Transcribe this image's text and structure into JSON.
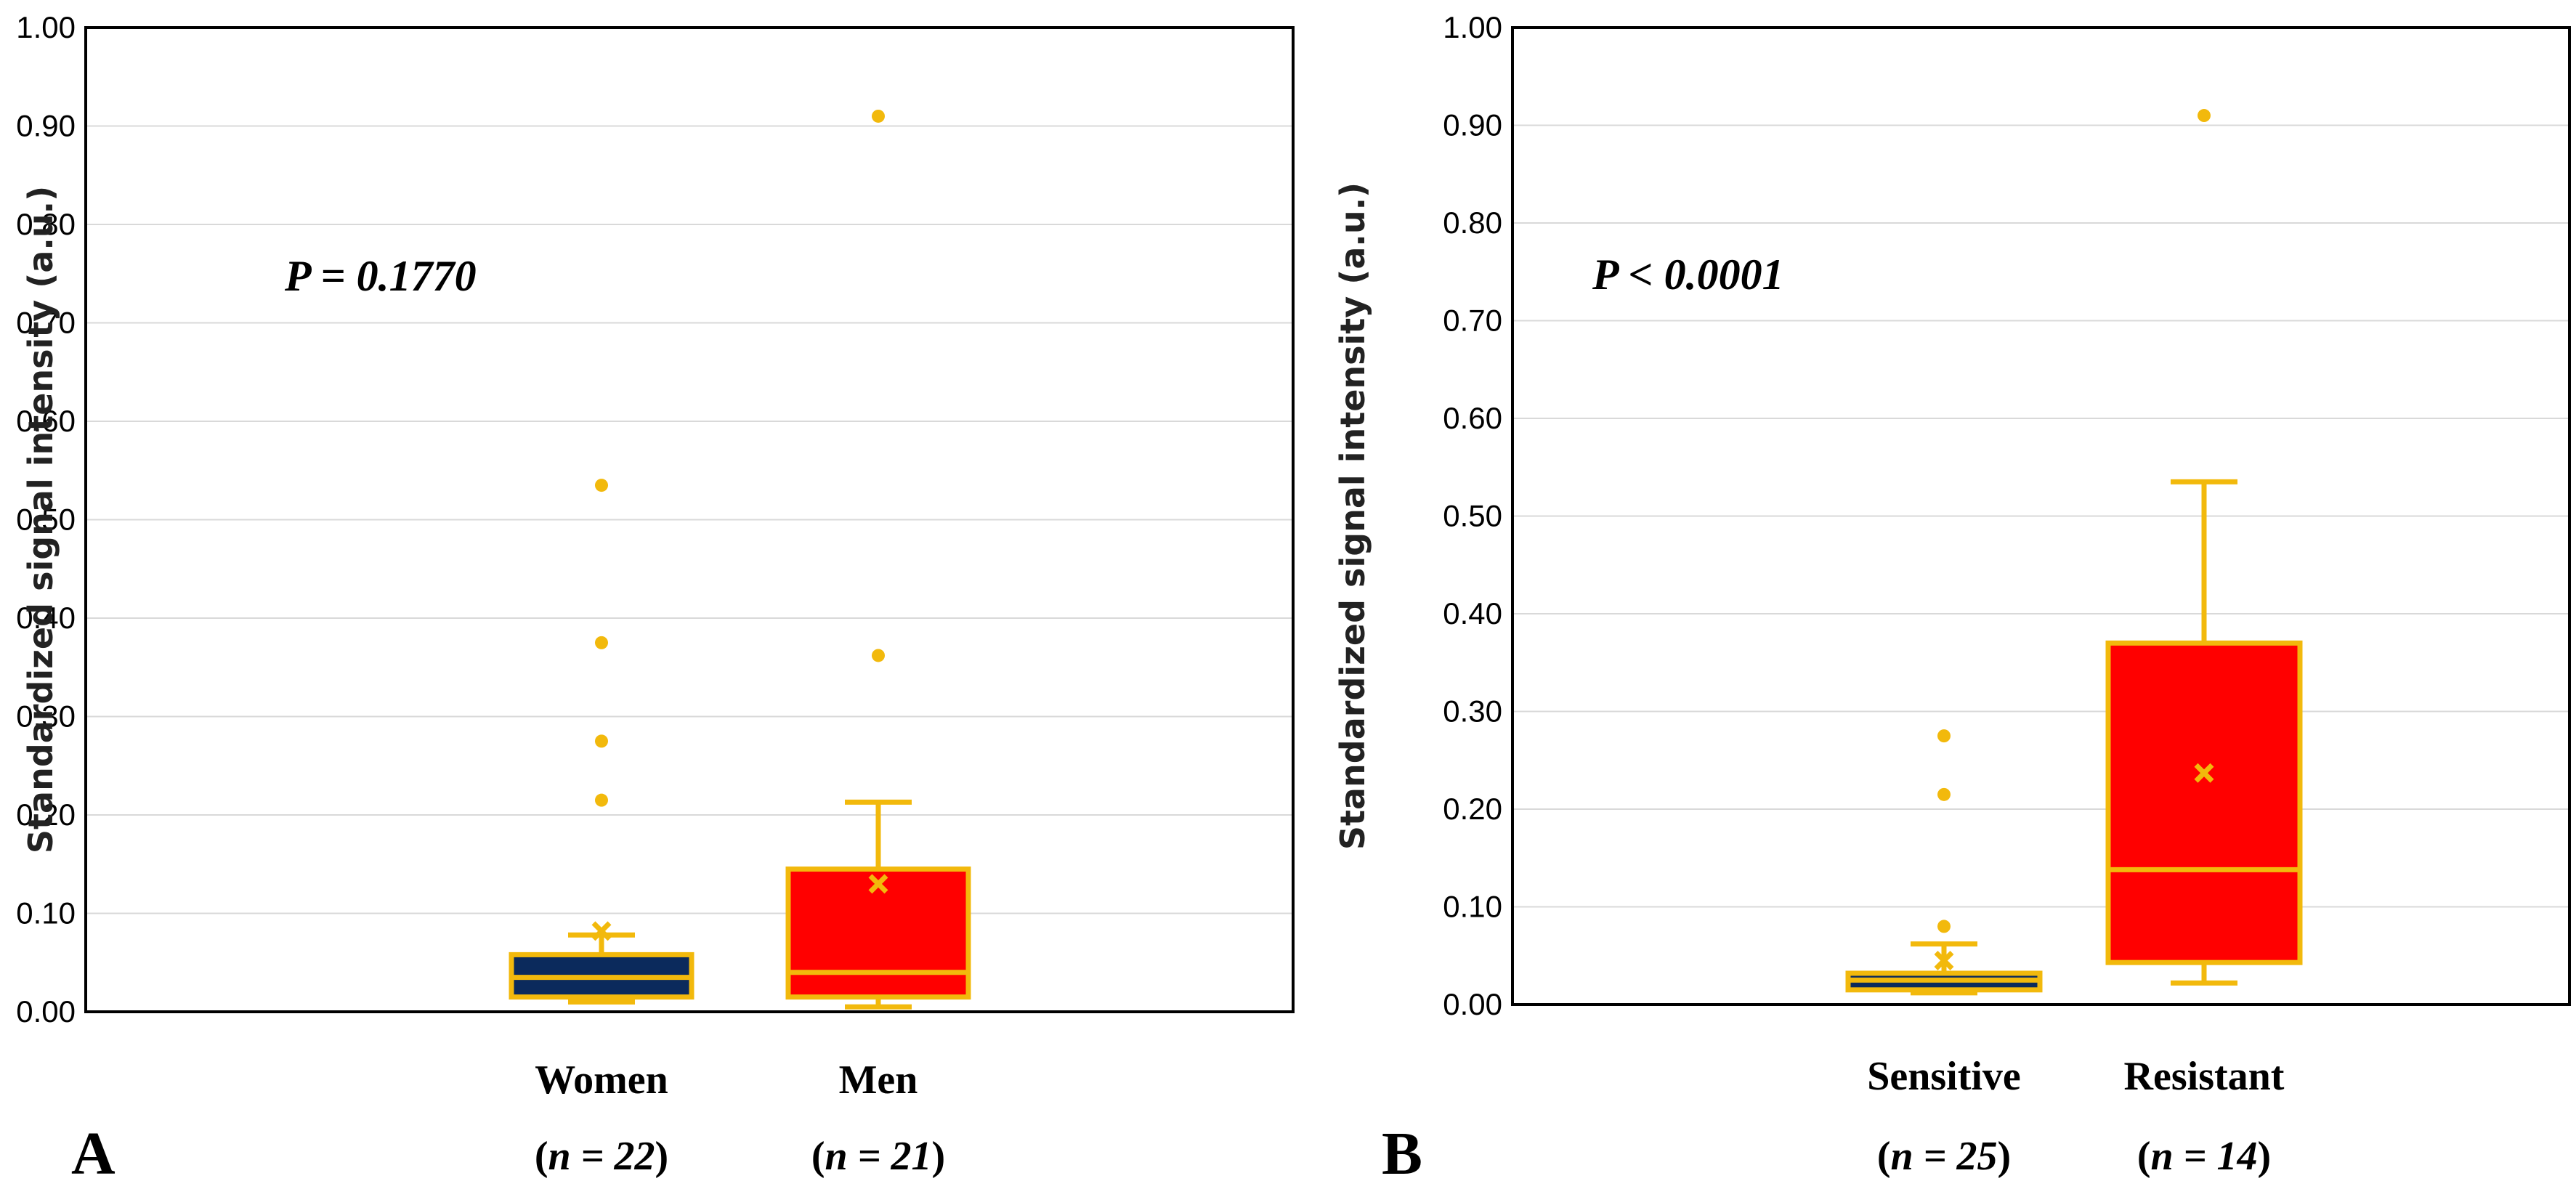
{
  "chart_data": [
    {
      "type": "box",
      "panel_label": "A",
      "ylabel": "Standardized signal intensity (a.u.)",
      "ylim": [
        0,
        1
      ],
      "yticks": [
        "0.00",
        "0.10",
        "0.20",
        "0.30",
        "0.40",
        "0.50",
        "0.60",
        "0.70",
        "0.80",
        "0.90",
        "1.00"
      ],
      "grid": true,
      "annotation": "P = 0.1770",
      "categories": [
        {
          "name": "Women",
          "n_prefix": "(",
          "n_label": "n = 22",
          "n_suffix": ")",
          "color": "#0b2a5c",
          "edge": "#f2b90c",
          "whisker_low": 0.01,
          "q1": 0.015,
          "median": 0.035,
          "q3": 0.058,
          "whisker_high": 0.078,
          "mean": 0.082,
          "outliers": [
            0.215,
            0.275,
            0.375,
            0.535
          ]
        },
        {
          "name": "Men",
          "n_prefix": "(",
          "n_label": "n = 21",
          "n_suffix": ")",
          "color": "#ff0000",
          "edge": "#f2b90c",
          "whisker_low": 0.005,
          "q1": 0.015,
          "median": 0.04,
          "q3": 0.145,
          "whisker_high": 0.213,
          "mean": 0.13,
          "outliers": [
            0.362,
            0.91
          ]
        }
      ]
    },
    {
      "type": "box",
      "panel_label": "B",
      "ylabel": "Standardized signal intensity (a.u.)",
      "ylim": [
        0,
        1
      ],
      "yticks": [
        "0.00",
        "0.10",
        "0.20",
        "0.30",
        "0.40",
        "0.50",
        "0.60",
        "0.70",
        "0.80",
        "0.90",
        "1.00"
      ],
      "grid": true,
      "annotation": "P < 0.0001",
      "categories": [
        {
          "name": "Sensitive",
          "n_prefix": "(",
          "n_label": "n = 25",
          "n_suffix": ")",
          "color": "#0b2a5c",
          "edge": "#f2b90c",
          "whisker_low": 0.012,
          "q1": 0.015,
          "median": 0.025,
          "q3": 0.032,
          "whisker_high": 0.062,
          "mean": 0.045,
          "outliers": [
            0.08,
            0.215,
            0.275
          ]
        },
        {
          "name": "Resistant",
          "n_prefix": "(",
          "n_label": "n = 14",
          "n_suffix": ")",
          "color": "#ff0000",
          "edge": "#f2b90c",
          "whisker_low": 0.022,
          "q1": 0.043,
          "median": 0.138,
          "q3": 0.37,
          "whisker_high": 0.535,
          "mean": 0.237,
          "outliers": [
            0.91
          ]
        }
      ]
    }
  ]
}
